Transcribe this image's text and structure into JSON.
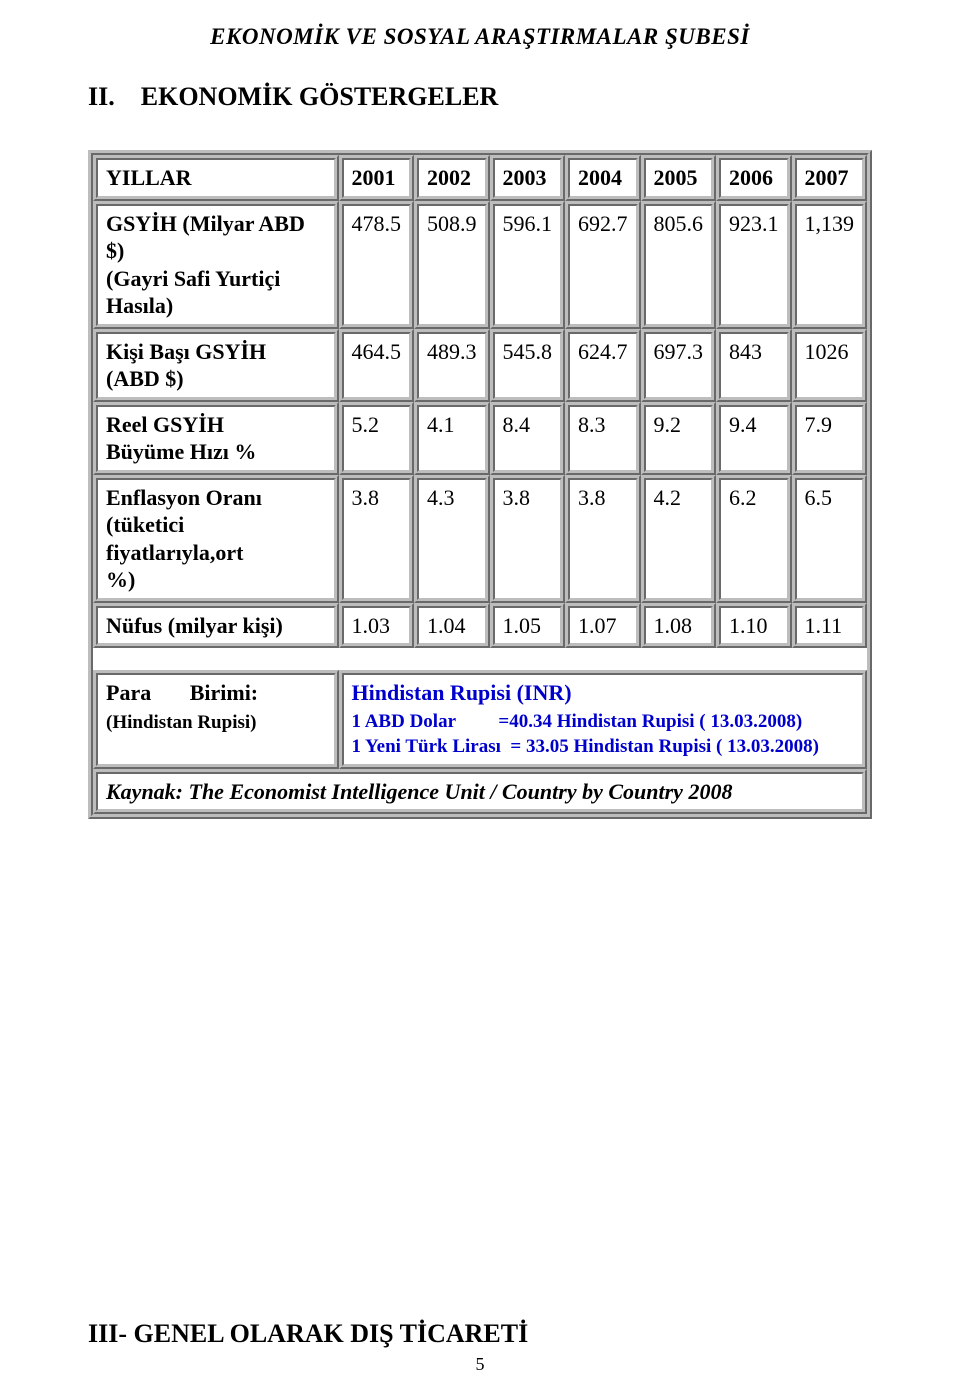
{
  "header": "EKONOMİK VE SOSYAL ARAŞTIRMALAR ŞUBESİ",
  "title_prefix": "II.",
  "title_text": "EKONOMİK GÖSTERGELER",
  "table": {
    "years_label": "YILLAR",
    "years": [
      "2001",
      "2002",
      "2003",
      "2004",
      "2005",
      "2006",
      "2007"
    ],
    "rows": [
      {
        "label_lines": [
          "GSYİH (Milyar ABD $)",
          "(Gayri Safi Yurtiçi Hasıla)"
        ],
        "values": [
          "478.5",
          "508.9",
          "596.1",
          "692.7",
          "805.6",
          "923.1",
          "1,139"
        ]
      },
      {
        "label_lines": [
          "Kişi Başı GSYİH",
          "(ABD $)"
        ],
        "values": [
          "464.5",
          "489.3",
          "545.8",
          "624.7",
          "697.3",
          "843",
          "1026"
        ]
      },
      {
        "label_lines": [
          "Reel GSYİH",
          "Büyüme Hızı %"
        ],
        "values": [
          "5.2",
          "4.1",
          "8.4",
          "8.3",
          "9.2",
          "9.4",
          "7.9"
        ]
      },
      {
        "label_lines": [
          "Enflasyon Oranı",
          "(tüketici   fiyatlarıyla,ort",
          "%)"
        ],
        "values": [
          "3.8",
          "4.3",
          "3.8",
          "3.8",
          "4.2",
          "6.2",
          "6.5"
        ]
      },
      {
        "label_lines": [
          "Nüfus (milyar kişi)"
        ],
        "values": [
          "1.03",
          "1.04",
          "1.05",
          "1.07",
          "1.08",
          "1.10",
          "1.11"
        ]
      }
    ],
    "currency_label_main": "Para       Birimi:",
    "currency_label_sub": "(Hindistan Rupisi)",
    "currency_title": "Hindistan Rupisi  (INR)",
    "currency_line1": "1 ABD Dolar         =40.34 Hindistan Rupisi ( 13.03.2008)",
    "currency_line2": "1 Yeni Türk Lirası  = 33.05 Hindistan Rupisi ( 13.03.2008)",
    "source": "Kaynak: The Economist Intelligence Unit / Country by Country 2008"
  },
  "section3": "III- GENEL OLARAK DIŞ TİCARETİ",
  "page_number": "5",
  "style": {
    "title_fontsize": 26,
    "cell_fontsize": 22,
    "currency_color": "#0000cc",
    "border_color": "#bdbdbd",
    "background": "#ffffff",
    "text_color": "#000000"
  }
}
